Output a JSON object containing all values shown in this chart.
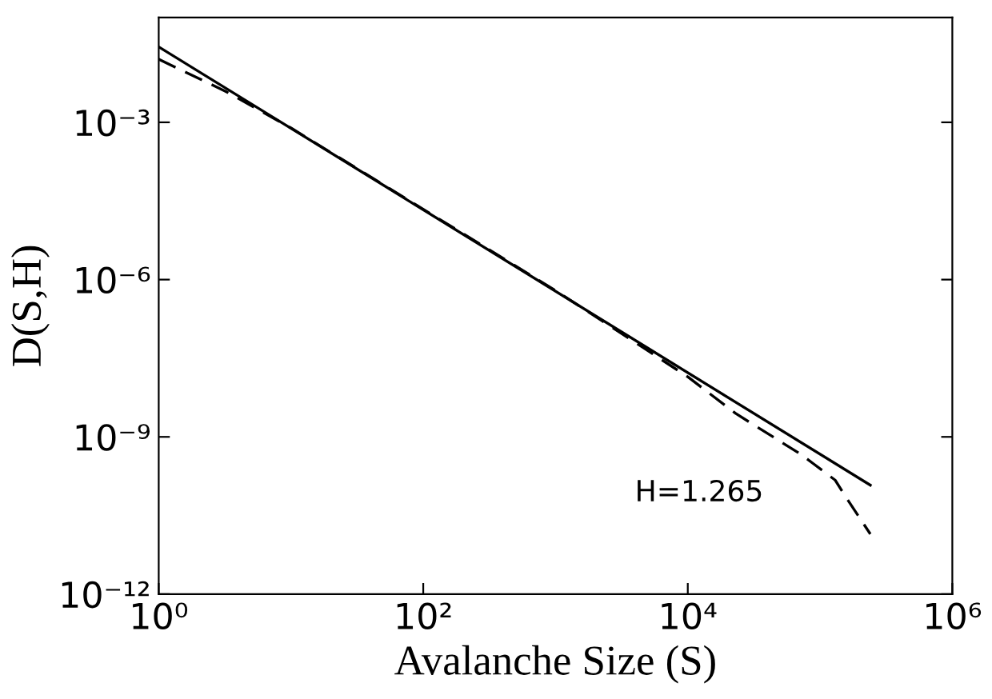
{
  "chart_data": {
    "type": "line",
    "xlabel": "Avalanche Size (S)",
    "ylabel": "D(S,H)",
    "log": "xy",
    "grid": false,
    "marker": "none",
    "xlim": [
      1,
      1000000
    ],
    "ylim": [
      1e-12,
      0.1
    ],
    "xticks": [
      {
        "value": 1,
        "label": "10⁰"
      },
      {
        "value": 100,
        "label": "10²"
      },
      {
        "value": 10000,
        "label": "10⁴"
      },
      {
        "value": 1000000,
        "label": "10⁶"
      }
    ],
    "yticks": [
      {
        "value": 1e-12,
        "label": "10⁻¹²"
      },
      {
        "value": 1e-09,
        "label": "10⁻⁹"
      },
      {
        "value": 1e-06,
        "label": "10⁻⁶"
      },
      {
        "value": 0.001,
        "label": "10⁻³"
      }
    ],
    "annotations": [
      "H=1.265"
    ],
    "series": [
      {
        "color": "#000000",
        "line_style": "solid",
        "x": [
          1,
          240000
        ],
        "values": [
          0.0275,
          1.2e-10
        ]
      },
      {
        "color": "#000000",
        "line_style": "dashed",
        "x": [
          1,
          3.2,
          10,
          100,
          1000,
          10000,
          23000,
          72000,
          130000,
          155000,
          240000
        ],
        "values": [
          0.016,
          0.0039,
          0.00078,
          2.2e-05,
          6.2e-07,
          1.4e-08,
          2.8e-09,
          4.6e-10,
          1.5e-10,
          7.4e-11,
          1.4e-11
        ]
      }
    ]
  }
}
